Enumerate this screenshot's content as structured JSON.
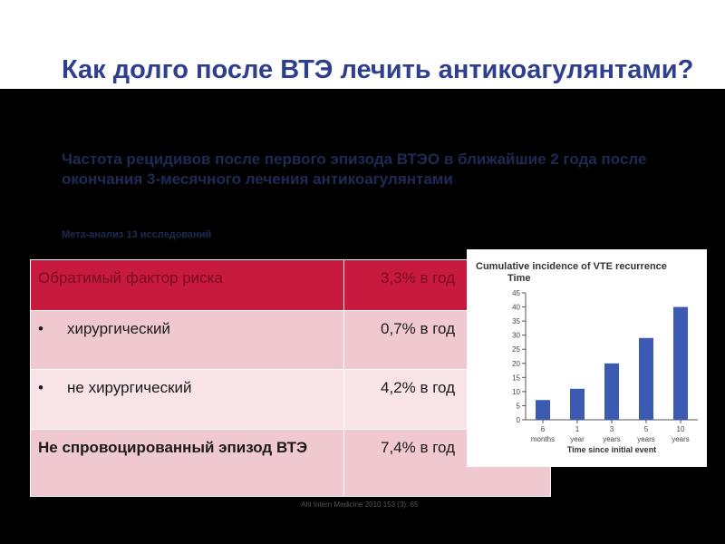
{
  "title": "Как долго после ВТЭ лечить антикоагулянтами?",
  "subtitle": "Частота рецидивов после первого эпизода ВТЭО в ближайшие 2 года после окончания 3-месячного лечения антикоагулянтами",
  "meta": "Мета-анализ 13 исследований",
  "table": {
    "rows": [
      {
        "label": "Обратимый фактор риска",
        "value": "3,3% в год"
      },
      {
        "bullet": "•",
        "label": "хирургический",
        "value": "0,7% в год"
      },
      {
        "bullet": "•",
        "label": "не хирургический",
        "value": "4,2% в год"
      },
      {
        "label": "Не спровоцированный эпизод ВТЭ",
        "value": "7,4% в год"
      }
    ]
  },
  "chart_data": {
    "type": "bar",
    "title": "Cumulative incidence of VTE recurrence",
    "ylabel": "Time",
    "xlabel": "Time since initial event",
    "categories": [
      {
        "top": "6",
        "bottom": "months"
      },
      {
        "top": "1",
        "bottom": "year"
      },
      {
        "top": "3",
        "bottom": "years"
      },
      {
        "top": "5",
        "bottom": "years"
      },
      {
        "top": "10",
        "bottom": "years"
      }
    ],
    "values": [
      7,
      11,
      20,
      29,
      40
    ],
    "ylim": [
      0,
      45
    ],
    "yticks": [
      0,
      5,
      10,
      15,
      20,
      25,
      30,
      35,
      40,
      45
    ],
    "grid": false,
    "bar_color": "#3b5bb2"
  },
  "footer_note": "Ahl Intern Medicine 2010 153 (3): 65"
}
